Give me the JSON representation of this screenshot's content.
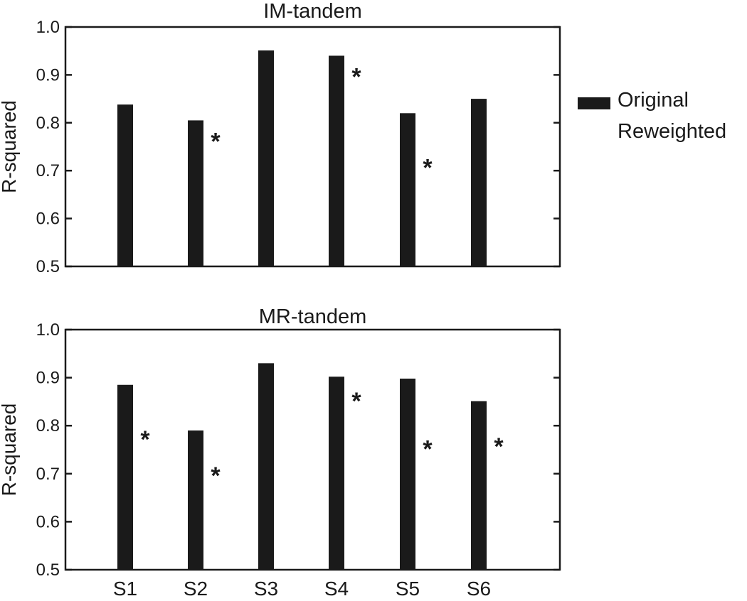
{
  "chart_data": [
    {
      "type": "bar",
      "title": "IM-tandem",
      "ylabel": "R-squared",
      "xlabel": "",
      "ylim": [
        0.5,
        1.0
      ],
      "yticks": [
        "0.5",
        "0.6",
        "0.7",
        "0.8",
        "0.9",
        "1.0"
      ],
      "categories": [
        "S1",
        "S2",
        "S3",
        "S4",
        "S5",
        "S6"
      ],
      "show_xtick_labels": false,
      "series": [
        {
          "name": "Original",
          "color": "#1a1a1a",
          "values": [
            0.838,
            0.805,
            0.951,
            0.94,
            0.82,
            0.85
          ]
        },
        {
          "name": "Reweighted",
          "color": "#ffffff",
          "values": [
            null,
            null,
            null,
            null,
            null,
            null
          ]
        }
      ],
      "annotations": [
        {
          "text": "*",
          "category": "S2",
          "y": 0.765
        },
        {
          "text": "*",
          "category": "S4",
          "y": 0.9
        },
        {
          "text": "*",
          "category": "S5",
          "y": 0.71
        }
      ],
      "grid": false
    },
    {
      "type": "bar",
      "title": "MR-tandem",
      "ylabel": "R-squared",
      "xlabel": "",
      "ylim": [
        0.5,
        1.0
      ],
      "yticks": [
        "0.5",
        "0.6",
        "0.7",
        "0.8",
        "0.9",
        "1.0"
      ],
      "categories": [
        "S1",
        "S2",
        "S3",
        "S4",
        "S5",
        "S6"
      ],
      "show_xtick_labels": true,
      "series": [
        {
          "name": "Original",
          "color": "#1a1a1a",
          "values": [
            0.885,
            0.79,
            0.93,
            0.902,
            0.898,
            0.851
          ]
        },
        {
          "name": "Reweighted",
          "color": "#ffffff",
          "values": [
            null,
            null,
            null,
            null,
            null,
            null
          ]
        }
      ],
      "annotations": [
        {
          "text": "*",
          "category": "S1",
          "y": 0.775
        },
        {
          "text": "*",
          "category": "S2",
          "y": 0.7
        },
        {
          "text": "*",
          "category": "S4",
          "y": 0.855
        },
        {
          "text": "*",
          "category": "S5",
          "y": 0.755
        },
        {
          "text": "*",
          "category": "S6",
          "y": 0.76
        }
      ],
      "grid": false
    }
  ],
  "legend": {
    "placement": "right",
    "items": [
      {
        "label": "Original",
        "swatch": "#1a1a1a"
      },
      {
        "label": "Reweighted",
        "swatch": ""
      }
    ]
  }
}
